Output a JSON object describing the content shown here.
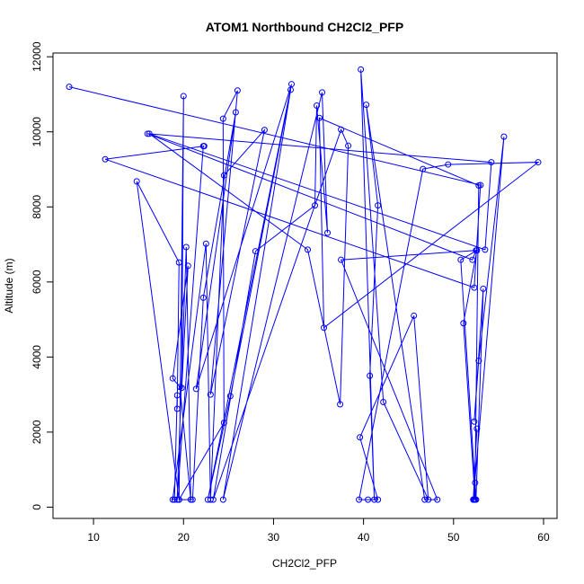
{
  "chart_data": {
    "type": "line",
    "title": "ATOM1 Northbound CH2Cl2_PFP",
    "xlabel": "CH2Cl2_PFP",
    "ylabel": "Altitude (m)",
    "xlim": [
      5.5,
      61.5
    ],
    "ylim": [
      -300,
      12100
    ],
    "xticks": [
      10,
      20,
      30,
      40,
      50,
      60
    ],
    "yticks": [
      0,
      2000,
      4000,
      6000,
      8000,
      10000,
      12000
    ],
    "color": "#0000ff",
    "series": [
      {
        "x": [
          7.3,
          53.0,
          52.3,
          11.3,
          22.3,
          22.2,
          19.3,
          20.3,
          20.8,
          19.6,
          18.8,
          20.5,
          19.8,
          20.0,
          19.5,
          14.8,
          19.5,
          19.3,
          19.3,
          19.0,
          18.8,
          22.5,
          23.0,
          24.5,
          29.0,
          23.0,
          26.0,
          24.4,
          24.5,
          19.5,
          21.0,
          22.2,
          25.8,
          21.4,
          32.0,
          22.7,
          25.2,
          31.9,
          24.4,
          35.4,
          36.0,
          34.8,
          34.6,
          28.0,
          23.3,
          37.5,
          38.3,
          37.4,
          33.8,
          16.2,
          53.5,
          54.2,
          16.0,
          52.1,
          52.5,
          37.5,
          48.2,
          46.8,
          40.3,
          41.6,
          40.7,
          41.2,
          39.7,
          42.2,
          47.2,
          45.6,
          39.6,
          41.6,
          40.5,
          39.5,
          46.6,
          49.4,
          59.4,
          35.6,
          35.1,
          52.8,
          52.4,
          52.3,
          52.4,
          51.1,
          52.6,
          50.8,
          52.5,
          53.3,
          52.3,
          52.8,
          55.6,
          52.2,
          52.6,
          52.2
        ],
        "y": [
          11200,
          8580,
          5850,
          9270,
          9620,
          9620,
          200,
          6930,
          200,
          3200,
          3430,
          6430,
          3180,
          10950,
          200,
          8680,
          6520,
          2620,
          2980,
          200,
          200,
          7020,
          200,
          8840,
          10050,
          3000,
          11100,
          10350,
          2250,
          200,
          200,
          5580,
          10520,
          3150,
          11270,
          200,
          2960,
          11120,
          200,
          11050,
          7310,
          10700,
          8040,
          6820,
          200,
          10060,
          9630,
          2740,
          6860,
          9950,
          6860,
          9190,
          9950,
          6590,
          6840,
          6590,
          200,
          200,
          10720,
          8040,
          3500,
          200,
          11660,
          2800,
          200,
          5100,
          1860,
          200,
          200,
          200,
          9010,
          9130,
          9190,
          4780,
          10370,
          8570,
          650,
          200,
          200,
          4900,
          6840,
          6590,
          200,
          5820,
          2280,
          3900,
          9870,
          200,
          2090,
          200
        ]
      }
    ]
  }
}
